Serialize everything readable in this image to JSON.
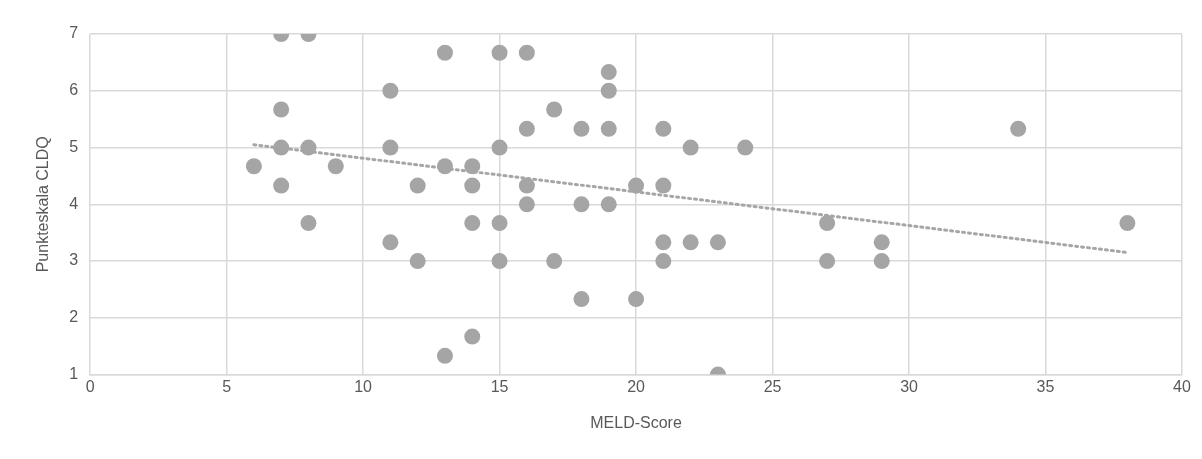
{
  "chart_data": {
    "type": "scatter",
    "xlabel": "MELD-Score",
    "ylabel": "Punkteskala CLDQ",
    "xlim": [
      0,
      40
    ],
    "xticks": [
      0,
      5,
      10,
      15,
      20,
      25,
      30,
      35,
      40
    ],
    "ylim": [
      1,
      7
    ],
    "yticks": [
      1,
      2,
      3,
      4,
      5,
      6,
      7
    ],
    "grid": true,
    "legend": false,
    "marker": "circle",
    "series": [
      {
        "color": "#a5a5a5",
        "x": [
          6,
          7,
          7,
          7,
          7,
          8,
          8,
          8,
          9,
          11,
          11,
          11,
          12,
          12,
          13,
          13,
          13,
          14,
          14,
          14,
          14,
          15,
          15,
          15,
          15,
          16,
          16,
          16,
          16,
          17,
          17,
          18,
          18,
          18,
          19,
          19,
          19,
          19,
          20,
          20,
          21,
          21,
          21,
          21,
          22,
          22,
          23,
          23,
          24,
          27,
          27,
          29,
          29,
          34,
          38
        ],
        "values": [
          4.67,
          7,
          5.67,
          5,
          4.33,
          7,
          5,
          3.67,
          4.67,
          6,
          5,
          3.33,
          4.33,
          3,
          6.67,
          4.67,
          1.33,
          4.67,
          4.33,
          3.67,
          1.67,
          6.67,
          5,
          3.67,
          3,
          6.67,
          5.33,
          4.33,
          4,
          5.67,
          3,
          5.33,
          4,
          2.33,
          6.33,
          6,
          5.33,
          4,
          4.33,
          2.33,
          5.33,
          4.33,
          3.33,
          3,
          5,
          3.33,
          3.33,
          1,
          5,
          3.67,
          3,
          3.33,
          3,
          5.33,
          3.67
        ]
      },
      {
        "type": "line",
        "color": "#a6a6a6",
        "line_style": "dotted",
        "marker": "none",
        "x": [
          6,
          38
        ],
        "values": [
          5.05,
          3.15
        ]
      }
    ]
  }
}
